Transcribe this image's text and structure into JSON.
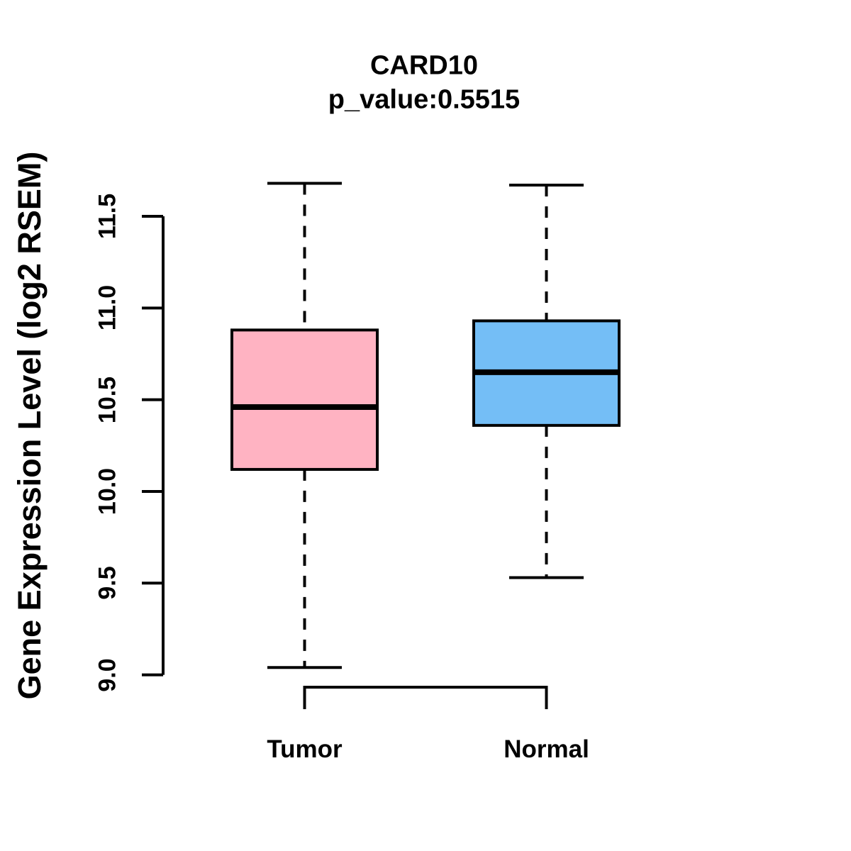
{
  "chart_data": {
    "type": "boxplot",
    "title": "CARD10",
    "subtitle": "p_value:0.5515",
    "ylabel": "Gene Expression Level (log2 RSEM)",
    "categories": [
      "Tumor",
      "Normal"
    ],
    "yticks": [
      11.5,
      11.0,
      10.5,
      10.0,
      9.5,
      9.0
    ],
    "ytick_labels": [
      "11.5",
      "11.0",
      "10.5",
      "10.0",
      "9.5",
      "9.0"
    ],
    "ylim": [
      9.0,
      11.5
    ],
    "grid": false,
    "legend": "none",
    "line_color": "#000000",
    "background_color": "#ffffff",
    "series": [
      {
        "name": "Tumor",
        "fill_color": "#FFB3C2",
        "min": 9.04,
        "q1": 10.12,
        "median": 10.46,
        "q3": 10.88,
        "max": 11.68
      },
      {
        "name": "Normal",
        "fill_color": "#74BEF6",
        "min": 9.53,
        "q1": 10.36,
        "median": 10.65,
        "q3": 10.93,
        "max": 11.67
      }
    ]
  }
}
